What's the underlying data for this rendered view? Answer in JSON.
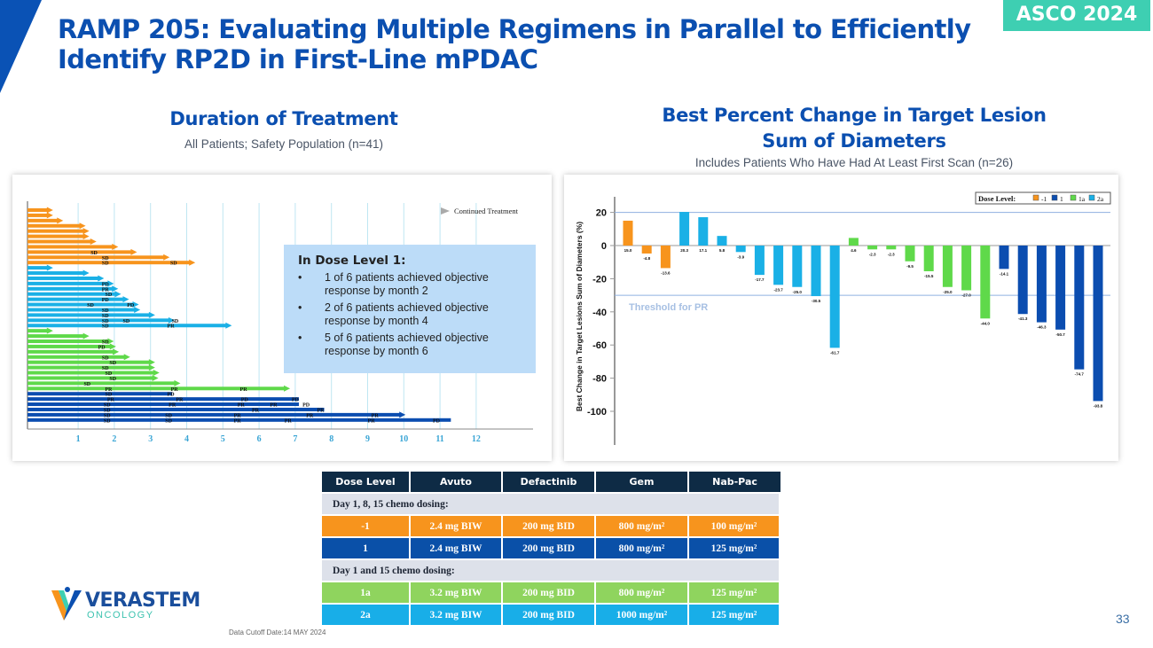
{
  "header": {
    "title_line1": "RAMP 205: Evaluating Multiple Regimens in Parallel to Efficiently",
    "title_line2": "Identify RP2D in First-Line mPDAC",
    "badge": "ASCO 2024"
  },
  "left": {
    "title": "Duration of Treatment",
    "subtitle": "All Patients; Safety Population (n=41)",
    "callout": {
      "heading": "In Dose Level 1:",
      "bullets": [
        "1 of 6 patients achieved objective response by month 2",
        "2 of 6 patients achieved objective response by month 4",
        "5 of 6 patients achieved objective response by month 6"
      ]
    }
  },
  "right": {
    "title_line1": "Best Percent Change in Target Lesion",
    "title_line2": "Sum of Diameters",
    "subtitle": "Includes Patients Who Have Had At Least First Scan (n=26)"
  },
  "colors": {
    "-1": "#f7941d",
    "1": "#0b4db0",
    "1a": "#5fd94a",
    "2a": "#1ab0e6"
  },
  "chart_data": [
    {
      "type": "swimmer",
      "legend": "Continued Treatment",
      "legend_placement": "top-right",
      "xticks": [
        1,
        2,
        3,
        4,
        5,
        6,
        7,
        8,
        9,
        10,
        11,
        12
      ],
      "grid": true,
      "groups": [
        {
          "dose_level": "-1",
          "bars": [
            {
              "end": 0.16,
              "c": true
            },
            {
              "end": 0.16,
              "c": true
            },
            {
              "end": 0.44,
              "c": true
            },
            {
              "end": 1.06,
              "c": true
            },
            {
              "end": 1.16,
              "c": true
            },
            {
              "end": 1.16,
              "c": true
            },
            {
              "end": 1.36,
              "c": true
            },
            {
              "end": 1.96,
              "c": true
            },
            {
              "end": 2.48,
              "c": true,
              "ev": [
                [
                  1.44,
                  "SD"
                ]
              ]
            },
            {
              "end": 3.38,
              "c": true,
              "ev": [
                [
                  1.75,
                  "SD"
                ]
              ]
            },
            {
              "end": 4.09,
              "c": true,
              "ev": [
                [
                  1.75,
                  "SD"
                ],
                [
                  3.64,
                  "SD"
                ]
              ]
            }
          ]
        },
        {
          "dose_level": "2a",
          "bars": [
            {
              "end": 0.16,
              "c": true
            },
            {
              "end": 1.16,
              "c": true
            },
            {
              "end": 1.57,
              "c": true
            },
            {
              "end": 1.84,
              "c": true,
              "ev": [
                [
                  1.75,
                  "PD"
                ]
              ]
            },
            {
              "end": 1.96,
              "c": true,
              "ev": [
                [
                  1.75,
                  "PR"
                ]
              ]
            },
            {
              "end": 2.04,
              "c": true,
              "ev": [
                [
                  1.84,
                  "SD"
                ]
              ]
            },
            {
              "end": 2.26,
              "c": true,
              "ev": [
                [
                  1.75,
                  "PD"
                ]
              ]
            },
            {
              "end": 2.53,
              "c": true,
              "ev": [
                [
                  1.34,
                  "SD"
                ],
                [
                  2.45,
                  "PD"
                ]
              ]
            },
            {
              "end": 2.57,
              "c": true,
              "ev": [
                [
                  1.75,
                  "SD"
                ]
              ]
            },
            {
              "end": 2.98,
              "c": true,
              "ev": [
                [
                  1.75,
                  "SD"
                ]
              ]
            },
            {
              "end": 3.52,
              "c": true,
              "ev": [
                [
                  1.75,
                  "SD"
                ],
                [
                  2.33,
                  "SD"
                ],
                [
                  3.68,
                  "SD"
                ]
              ]
            },
            {
              "end": 5.1,
              "c": true,
              "ev": [
                [
                  1.75,
                  "SD"
                ],
                [
                  3.56,
                  "PR"
                ]
              ]
            }
          ]
        },
        {
          "dose_level": "1a",
          "bars": [
            {
              "end": 0.16,
              "c": true
            },
            {
              "end": 1.16,
              "c": true
            },
            {
              "end": 1.84,
              "c": true,
              "ev": [
                [
                  1.75,
                  "SD"
                ]
              ]
            },
            {
              "end": 1.9,
              "c": true,
              "ev": [
                [
                  1.65,
                  "PD"
                ]
              ]
            },
            {
              "end": 1.98,
              "c": true
            },
            {
              "end": 2.29,
              "c": true,
              "ev": [
                [
                  1.75,
                  "SD"
                ]
              ]
            },
            {
              "end": 2.98,
              "c": true,
              "ev": [
                [
                  1.96,
                  "SD"
                ]
              ]
            },
            {
              "end": 2.98,
              "c": true,
              "ev": [
                [
                  1.75,
                  "SD"
                ]
              ]
            },
            {
              "end": 3.1,
              "c": true,
              "ev": [
                [
                  1.84,
                  "SD"
                ]
              ]
            },
            {
              "end": 3.07,
              "c": true,
              "ev": [
                [
                  1.96,
                  "SD"
                ]
              ]
            },
            {
              "end": 3.68,
              "c": true,
              "ev": [
                [
                  1.25,
                  "SD"
                ]
              ]
            },
            {
              "end": 6.71,
              "c": true,
              "ev": [
                [
                  1.84,
                  "PR"
                ],
                [
                  3.66,
                  "PR"
                ],
                [
                  5.57,
                  "PR"
                ]
              ]
            }
          ]
        },
        {
          "dose_level": "1",
          "bars": [
            {
              "end": 3.6,
              "c": false,
              "ev": [
                [
                  1.84,
                  "SD"
                ],
                [
                  3.56,
                  "PD"
                ]
              ]
            },
            {
              "end": 7.1,
              "c": false,
              "ev": [
                [
                  1.9,
                  "PR"
                ],
                [
                  3.8,
                  "PR"
                ],
                [
                  5.6,
                  "PD"
                ],
                [
                  7.0,
                  "PD"
                ]
              ]
            },
            {
              "end": 7.1,
              "c": false,
              "ev": [
                [
                  1.8,
                  "SD"
                ],
                [
                  3.6,
                  "PR"
                ],
                [
                  5.5,
                  "PR"
                ],
                [
                  6.4,
                  "PR"
                ],
                [
                  7.3,
                  "PD"
                ]
              ]
            },
            {
              "end": 7.8,
              "c": false,
              "ev": [
                [
                  1.8,
                  "SD"
                ],
                [
                  5.9,
                  "PR"
                ],
                [
                  7.7,
                  "PR"
                ]
              ]
            },
            {
              "end": 9.9,
              "c": true,
              "ev": [
                [
                  1.8,
                  "SD"
                ],
                [
                  3.5,
                  "SD"
                ],
                [
                  5.4,
                  "PR"
                ],
                [
                  7.4,
                  "PR"
                ],
                [
                  9.2,
                  "PR"
                ]
              ]
            },
            {
              "end": 11.3,
              "c": false,
              "ev": [
                [
                  1.8,
                  "SD"
                ],
                [
                  3.5,
                  "SD"
                ],
                [
                  5.4,
                  "PR"
                ],
                [
                  6.8,
                  "PR"
                ],
                [
                  9.1,
                  "PR"
                ],
                [
                  10.9,
                  "PD"
                ]
              ]
            }
          ]
        }
      ]
    },
    {
      "type": "bar",
      "ylabel": "Best Change in Target Lesions Sum of Diameters (%)",
      "yticks": [
        20,
        0,
        -20,
        -40,
        -60,
        -80,
        -100
      ],
      "ylim": [
        -115,
        28
      ],
      "threshold": {
        "label": "Threshold for PR",
        "value": -30
      },
      "upper_line": 20,
      "legend": {
        "title": "Dose Level:",
        "entries": [
          "-1",
          "1",
          "1a",
          "2a"
        ],
        "placement": "top-right"
      },
      "bars": [
        {
          "dl": "-1",
          "v": 15.0,
          "label": "15.0"
        },
        {
          "dl": "-1",
          "v": -4.8,
          "label": "-4.8"
        },
        {
          "dl": "-1",
          "v": -13.6,
          "label": "-13.6"
        },
        {
          "dl": "2a",
          "v": 20.3,
          "label": "20.3"
        },
        {
          "dl": "2a",
          "v": 17.1,
          "label": "17.1"
        },
        {
          "dl": "2a",
          "v": 5.8,
          "label": "5.8"
        },
        {
          "dl": "2a",
          "v": -3.9,
          "label": "-3.9"
        },
        {
          "dl": "2a",
          "v": -17.7,
          "label": "-17.7"
        },
        {
          "dl": "2a",
          "v": -23.7,
          "label": "-23.7"
        },
        {
          "dl": "2a",
          "v": -25.0,
          "label": "-25.0"
        },
        {
          "dl": "2a",
          "v": -30.5,
          "label": "-30.5"
        },
        {
          "dl": "2a",
          "v": -61.7,
          "label": "-61.7"
        },
        {
          "dl": "1a",
          "v": 4.6,
          "label": "4.6"
        },
        {
          "dl": "1a",
          "v": -2.3,
          "label": "-2.3"
        },
        {
          "dl": "1a",
          "v": -2.3,
          "label": "-2.3"
        },
        {
          "dl": "1a",
          "v": -9.5,
          "label": "-9.5"
        },
        {
          "dl": "1a",
          "v": -15.5,
          "label": "-15.5"
        },
        {
          "dl": "1a",
          "v": -25.0,
          "label": "-25.0"
        },
        {
          "dl": "1a",
          "v": -27.0,
          "label": "-27.0"
        },
        {
          "dl": "1a",
          "v": -44.0,
          "label": "-44.0"
        },
        {
          "dl": "1",
          "v": -14.1,
          "label": "-14.1"
        },
        {
          "dl": "1",
          "v": -41.3,
          "label": "-41.3"
        },
        {
          "dl": "1",
          "v": -46.3,
          "label": "-46.3"
        },
        {
          "dl": "1",
          "v": -50.7,
          "label": "-50.7"
        },
        {
          "dl": "1",
          "v": -74.7,
          "label": "-74.7"
        },
        {
          "dl": "1",
          "v": -93.8,
          "label": "-93.8"
        }
      ]
    }
  ],
  "table": {
    "headers": [
      "Dose Level",
      "Avuto",
      "Defactinib",
      "Gem",
      "Nab-Pac"
    ],
    "section1": "Day 1, 8, 15 chemo dosing:",
    "section2": "Day 1 and 15 chemo dosing:",
    "rows": [
      [
        "-1",
        "2.4 mg BIW",
        "200 mg BID",
        "800 mg/m²",
        "100 mg/m²"
      ],
      [
        "1",
        "2.4 mg BIW",
        "200 mg BID",
        "800 mg/m²",
        "125 mg/m²"
      ],
      [
        "1a",
        "3.2 mg BIW",
        "200 mg BID",
        "800 mg/m²",
        "125 mg/m²"
      ],
      [
        "2a",
        "3.2 mg BIW",
        "200 mg BID",
        "1000 mg/m²",
        "125 mg/m²"
      ]
    ]
  },
  "footer": {
    "logo_main": "VERASTEM",
    "logo_sub": "ONCOLOGY",
    "cutoff": "Data Cutoff Date:14 MAY 2024",
    "page": "33"
  }
}
